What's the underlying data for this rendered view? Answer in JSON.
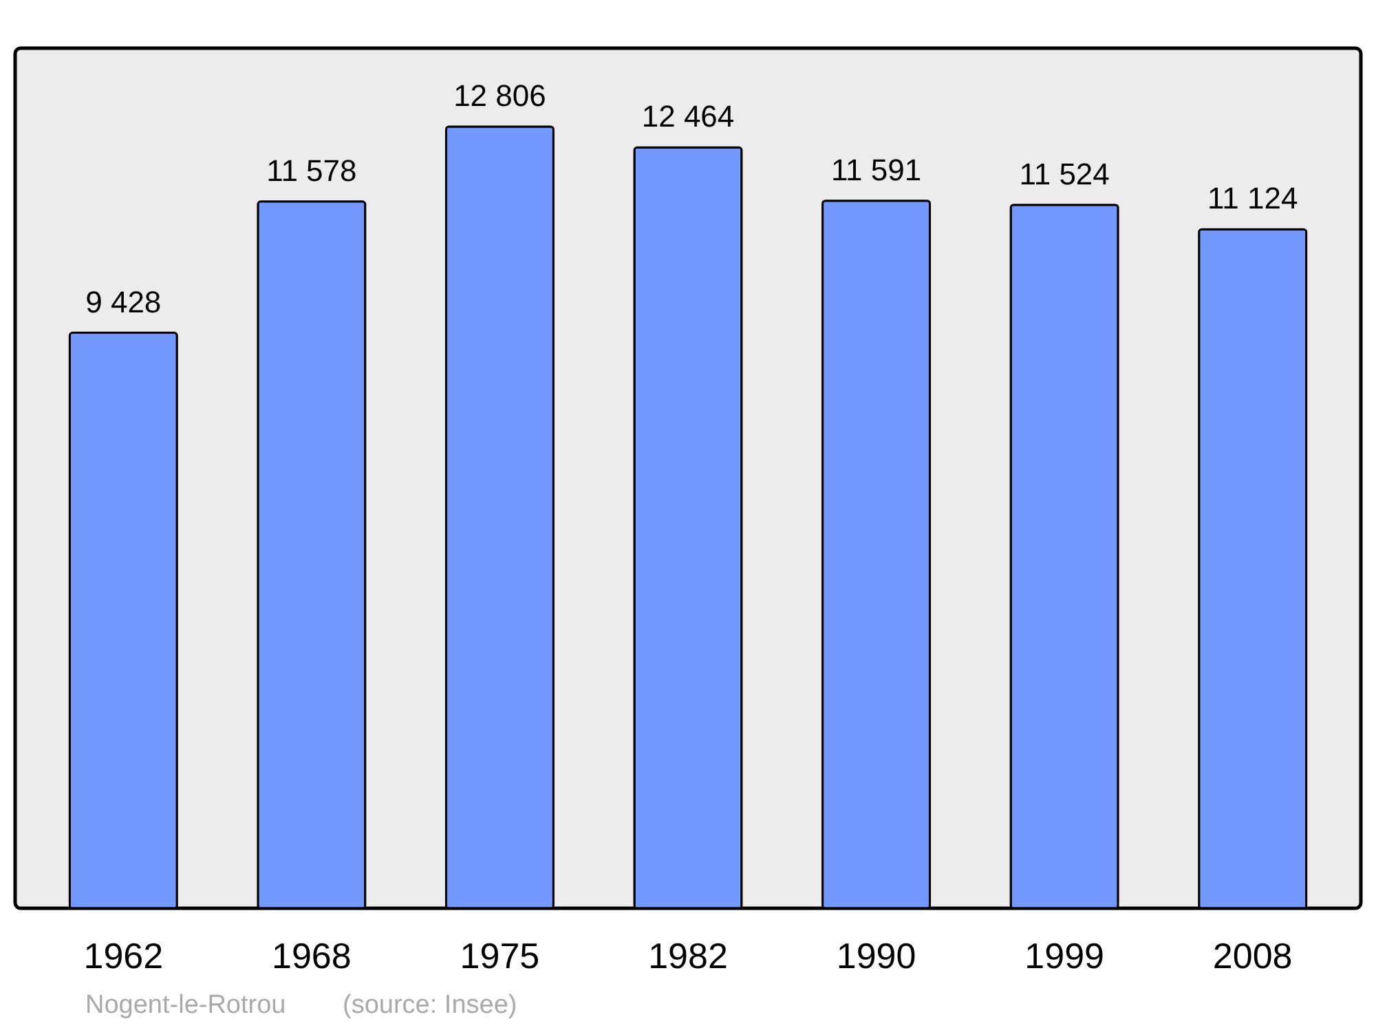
{
  "chart_data": {
    "type": "bar",
    "categories": [
      "1962",
      "1968",
      "1975",
      "1982",
      "1990",
      "1999",
      "2008"
    ],
    "values": [
      9428,
      11578,
      12806,
      12464,
      11591,
      11524,
      11124
    ],
    "value_labels": [
      "9 428",
      "11 578",
      "12 806",
      "12 464",
      "11 591",
      "11 524",
      "11 124"
    ],
    "color": "#7399ff",
    "ylim": [
      0,
      14090
    ],
    "tick_labels": "x",
    "grid": false,
    "annotations": [
      "Nogent-le-Rotrou",
      "(source: Insee)"
    ]
  }
}
